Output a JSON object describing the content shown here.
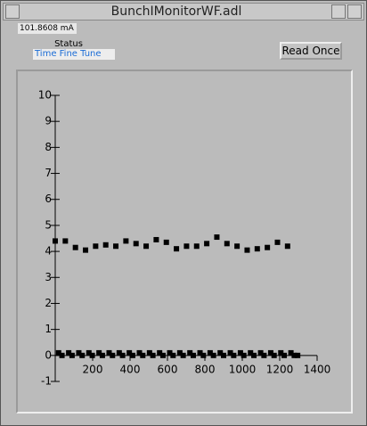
{
  "window": {
    "title": "BunchIMonitorWF.adl"
  },
  "readback": "101.8608 mA",
  "status_label": "Status",
  "status_value": "Time Fine Tune",
  "button": "Read Once",
  "chart_data": {
    "type": "scatter",
    "color": "#000000",
    "x": [
      0,
      18,
      36,
      54,
      72,
      90,
      108,
      126,
      144,
      162,
      180,
      198,
      216,
      234,
      252,
      270,
      288,
      306,
      324,
      342,
      360,
      378,
      396,
      414,
      432,
      450,
      468,
      486,
      504,
      522,
      540,
      558,
      576,
      594,
      612,
      630,
      648,
      666,
      684,
      702,
      720,
      738,
      756,
      774,
      792,
      810,
      828,
      846,
      864,
      882,
      900,
      918,
      936,
      954,
      972,
      990,
      1008,
      1026,
      1044,
      1062,
      1080,
      1098,
      1116,
      1134,
      1152,
      1170,
      1188,
      1206,
      1224,
      1242,
      1260,
      1278,
      1296
    ],
    "values": [
      4.4,
      0.1,
      0,
      4.4,
      0.1,
      0,
      4.15,
      0.1,
      0,
      4.05,
      0.1,
      0,
      4.2,
      0.1,
      0,
      4.25,
      0.1,
      0,
      4.2,
      0.1,
      0,
      4.4,
      0.1,
      0,
      4.3,
      0.1,
      0,
      4.2,
      0.1,
      0,
      4.45,
      0.1,
      0,
      4.35,
      0.1,
      0,
      4.1,
      0.1,
      0,
      4.2,
      0.1,
      0,
      4.2,
      0.1,
      0,
      4.3,
      0.1,
      0,
      4.55,
      0.1,
      0,
      4.3,
      0.1,
      0,
      4.2,
      0.1,
      0,
      4.05,
      0.1,
      0,
      4.1,
      0.1,
      0,
      4.15,
      0.1,
      0,
      4.35,
      0.1,
      0,
      4.2,
      0.1,
      0,
      0
    ],
    "xlim": [
      0,
      1400
    ],
    "ylim": [
      -1,
      10
    ],
    "xticks": [
      200,
      400,
      600,
      800,
      1000,
      1200,
      1400
    ],
    "yticks": [
      -1,
      0,
      1,
      2,
      3,
      4,
      5,
      6,
      7,
      8,
      9,
      10
    ]
  }
}
